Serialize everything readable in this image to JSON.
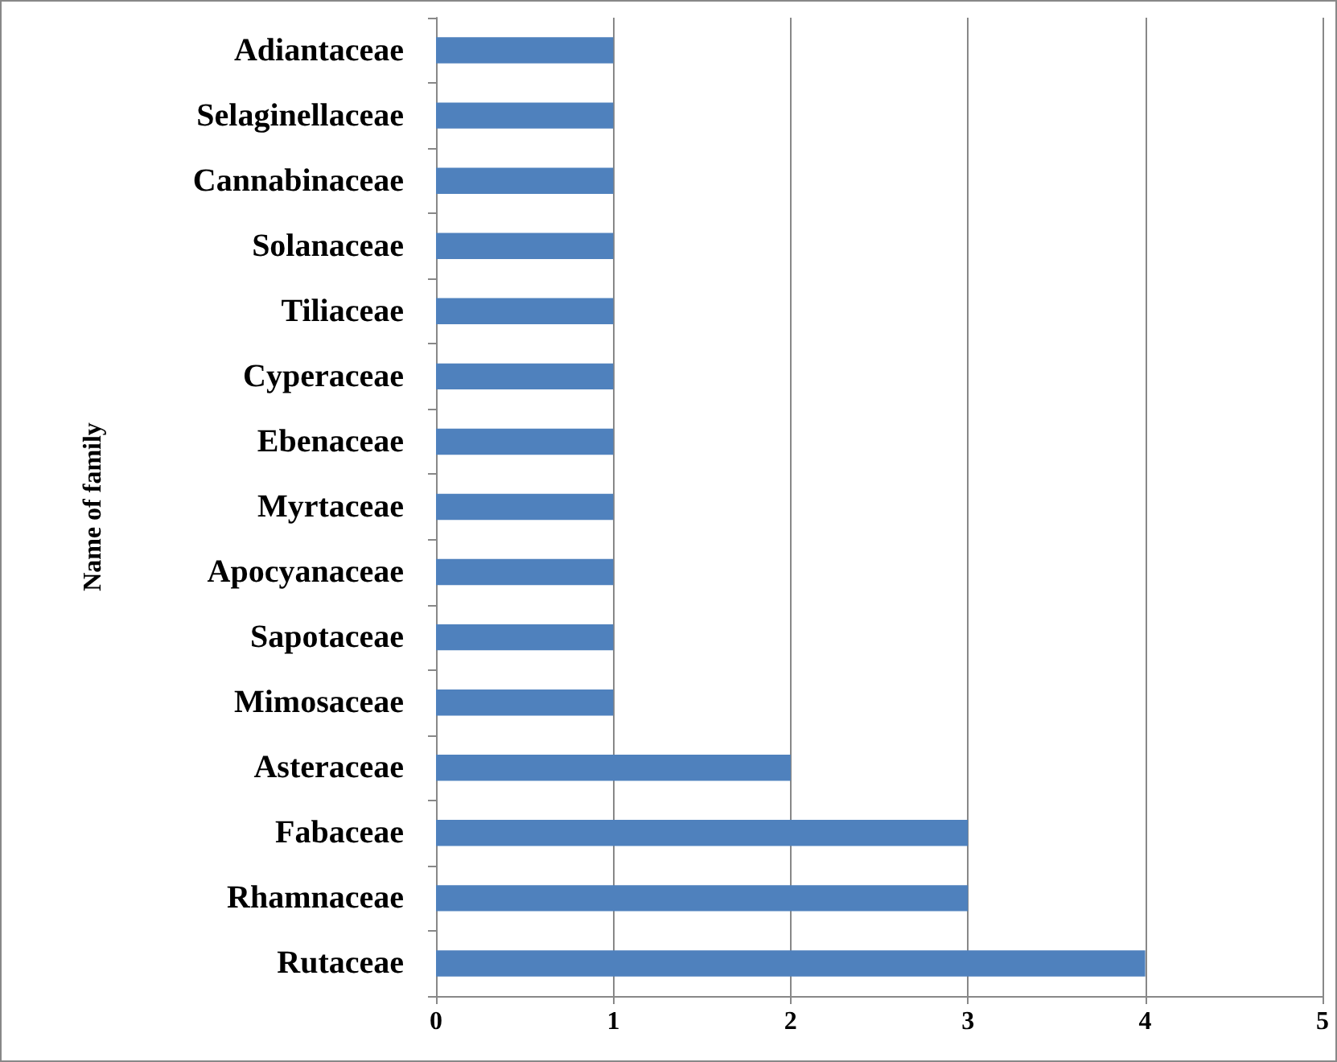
{
  "chart_data": {
    "type": "bar",
    "orientation": "horizontal",
    "ylabel": "Name of family",
    "categories": [
      "Adiantaceae",
      "Selaginellaceae",
      "Cannabinaceae",
      "Solanaceae",
      "Tiliaceae",
      "Cyperaceae",
      "Ebenaceae",
      "Myrtaceae",
      "Apocyanaceae",
      "Sapotaceae",
      "Mimosaceae",
      "Asteraceae",
      "Fabaceae",
      "Rhamnaceae",
      "Rutaceae"
    ],
    "values": [
      1,
      1,
      1,
      1,
      1,
      1,
      1,
      1,
      1,
      1,
      1,
      2,
      3,
      3,
      4
    ],
    "color": "#4f81bd",
    "xlim": [
      0,
      5
    ],
    "xticks": [
      0,
      1,
      2,
      3,
      4,
      5
    ],
    "grid": "x"
  }
}
